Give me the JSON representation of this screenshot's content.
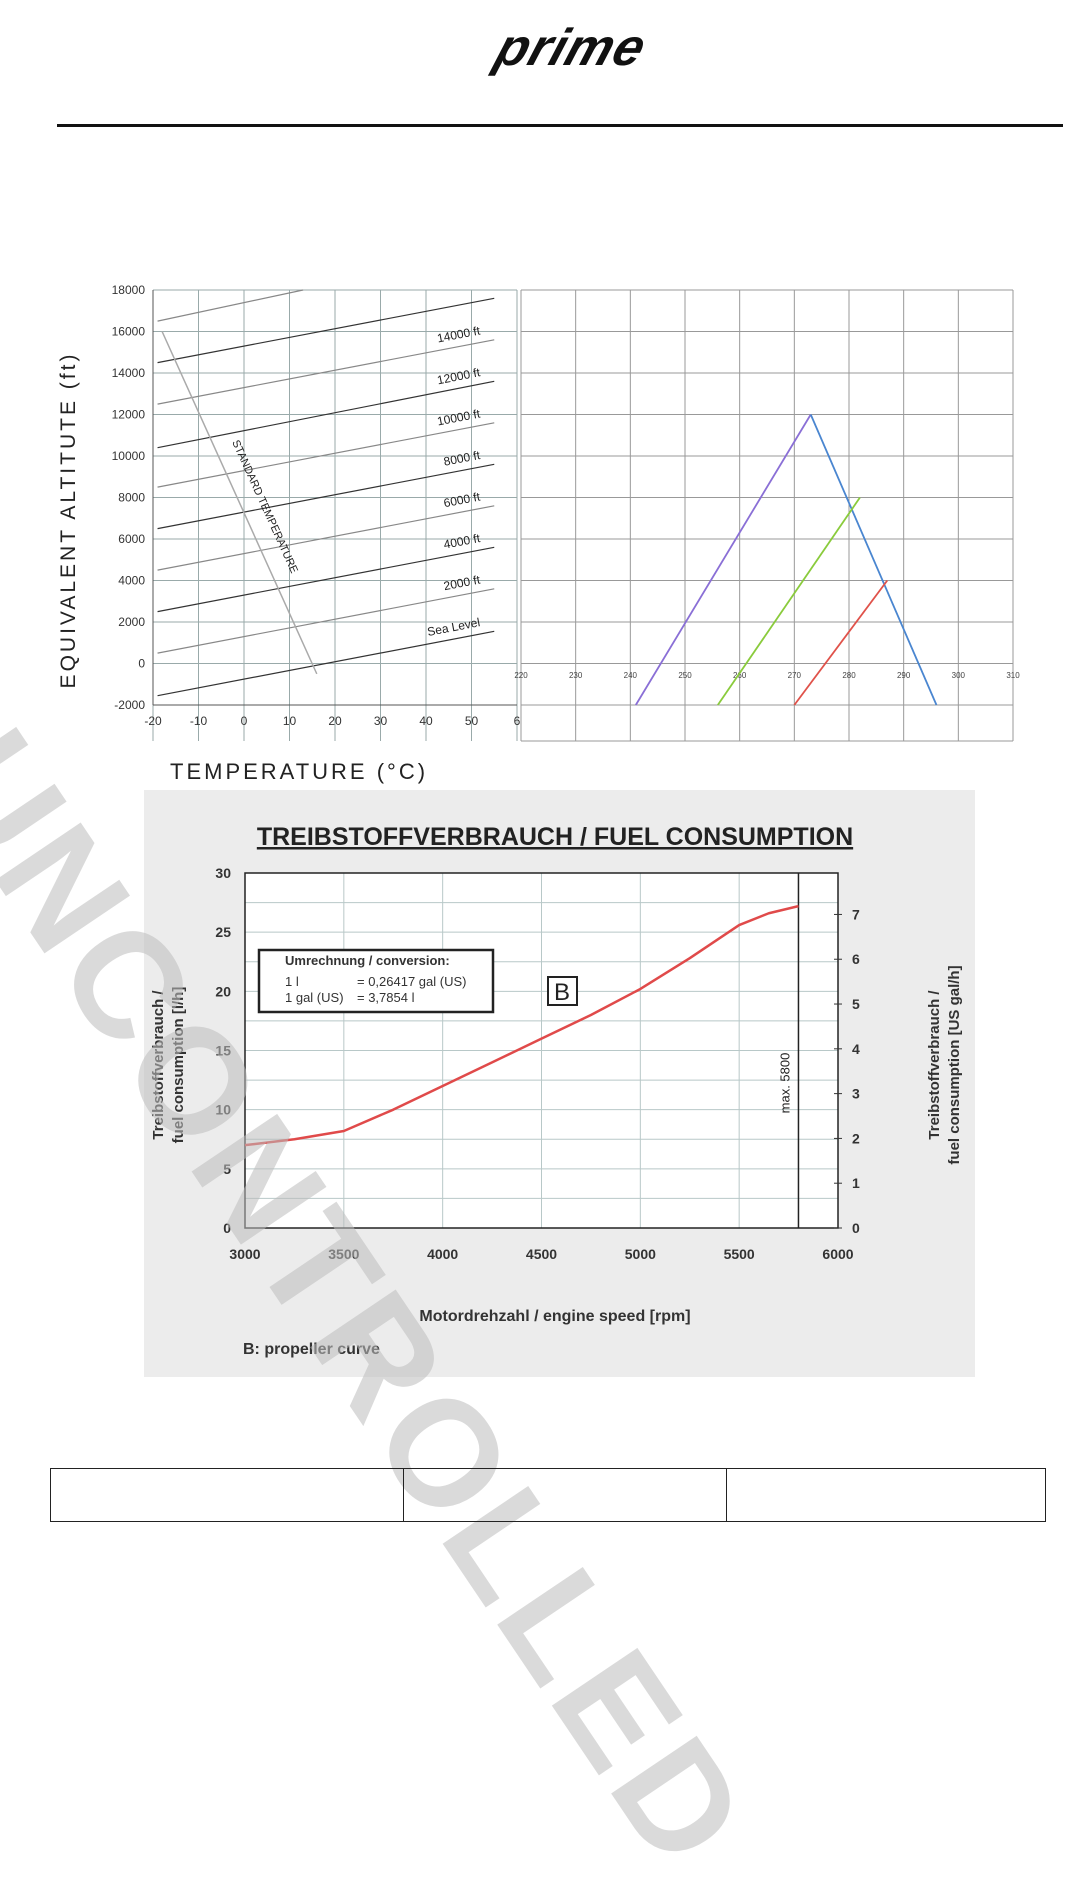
{
  "header": {
    "logo_text": "prime"
  },
  "watermark": "UNCONTROLLED",
  "footer": {
    "cells": [
      "",
      "",
      ""
    ]
  },
  "chart_data": [
    {
      "type": "line",
      "title": "",
      "xlabel": "TEMPERATURE (°C)",
      "ylabel": "EQUIVALENT ALTITUTE (ft)",
      "xlim": [
        -20,
        60
      ],
      "ylim": [
        -2000,
        18000
      ],
      "xticks": [
        "-20",
        "-10",
        "0",
        "10",
        "20",
        "30",
        "40",
        "50",
        "6"
      ],
      "yticks": [
        "18000",
        "16000",
        "14000",
        "12000",
        "10000",
        "8000",
        "6000",
        "4000",
        "2000",
        "0",
        "-2000"
      ],
      "grid": true,
      "series": [
        {
          "name": "Sea Level",
          "x": [
            -19,
            55
          ],
          "y": [
            -1550,
            1550
          ]
        },
        {
          "name": "2000 ft",
          "x": [
            -19,
            55
          ],
          "y": [
            500,
            3600
          ]
        },
        {
          "name": "4000 ft",
          "x": [
            -19,
            55
          ],
          "y": [
            2500,
            5600
          ]
        },
        {
          "name": "6000 ft",
          "x": [
            -19,
            55
          ],
          "y": [
            4500,
            7600
          ]
        },
        {
          "name": "8000 ft",
          "x": [
            -19,
            55
          ],
          "y": [
            6500,
            9600
          ]
        },
        {
          "name": "10000 ft",
          "x": [
            -19,
            55
          ],
          "y": [
            8500,
            11600
          ]
        },
        {
          "name": "12000 ft",
          "x": [
            -19,
            55
          ],
          "y": [
            10400,
            13600
          ]
        },
        {
          "name": "14000 ft",
          "x": [
            -19,
            55
          ],
          "y": [
            12500,
            15600
          ]
        },
        {
          "name": "",
          "x": [
            -19,
            55
          ],
          "y": [
            14500,
            17600
          ]
        },
        {
          "name": "",
          "x": [
            -19,
            13
          ],
          "y": [
            16500,
            18000
          ]
        }
      ],
      "annotations": [
        {
          "text": "STANDARD TEMPERATURE",
          "x": [
            -18,
            16
          ],
          "y": [
            16000,
            -500
          ]
        }
      ]
    },
    {
      "type": "line",
      "title": "",
      "xlim": [
        220,
        310
      ],
      "ylim": [
        -2000,
        18000
      ],
      "xticks": [
        "220",
        "230",
        "240",
        "250",
        "260",
        "270",
        "280",
        "290",
        "300",
        "310"
      ],
      "grid": true,
      "series": [
        {
          "name": "purple",
          "color": "#8a6fd6",
          "x": [
            241,
            273
          ],
          "y": [
            -2000,
            12000
          ]
        },
        {
          "name": "blue",
          "color": "#4a86d0",
          "x": [
            273,
            296
          ],
          "y": [
            12000,
            -2000
          ]
        },
        {
          "name": "green",
          "color": "#8acb3c",
          "x": [
            256,
            282
          ],
          "y": [
            -2000,
            8000
          ]
        },
        {
          "name": "red",
          "color": "#e0524a",
          "x": [
            270,
            287
          ],
          "y": [
            -2000,
            4000
          ]
        }
      ]
    },
    {
      "type": "line",
      "title": "TREIBSTOFFVERBRAUCH / FUEL CONSUMPTION",
      "xlabel": "Motordrehzahl / engine speed [rpm]",
      "ylabel": [
        "Treibstoffverbrauch /",
        "fuel consumption [l/h]"
      ],
      "ylabel_right": [
        "Treibstoffverbrauch /",
        "fuel consumption [US gal/h]"
      ],
      "xlim": [
        3000,
        6000
      ],
      "ylim": [
        0,
        30
      ],
      "ylim_right": [
        0,
        7.925
      ],
      "xticks": [
        "3000",
        "3500",
        "4000",
        "4500",
        "5000",
        "5500",
        "6000"
      ],
      "yticks": [
        "0",
        "5",
        "10",
        "15",
        "20",
        "25",
        "30"
      ],
      "yticks_right": [
        "0",
        "1",
        "2",
        "3",
        "4",
        "5",
        "6",
        "7"
      ],
      "grid": true,
      "series": [
        {
          "name": "B",
          "color": "#e04a4a",
          "x": [
            3000,
            3250,
            3500,
            3750,
            4000,
            4250,
            4500,
            4750,
            5000,
            5250,
            5500,
            5650,
            5800
          ],
          "y": [
            7.0,
            7.5,
            8.2,
            10.0,
            12.0,
            14.0,
            16.0,
            18.0,
            20.2,
            22.8,
            25.6,
            26.6,
            27.2
          ]
        }
      ],
      "limit_line": {
        "x": 5800,
        "label": "max. 5800"
      },
      "curve_label": "B",
      "conversion_box": {
        "title": "Umrechnung / conversion:",
        "line1_left": "1 l",
        "line1_right": "= 0,26417 gal (US)",
        "line2_left": "1 gal (US)",
        "line2_right": "= 3,7854 l"
      },
      "note": "B: propeller curve"
    }
  ]
}
